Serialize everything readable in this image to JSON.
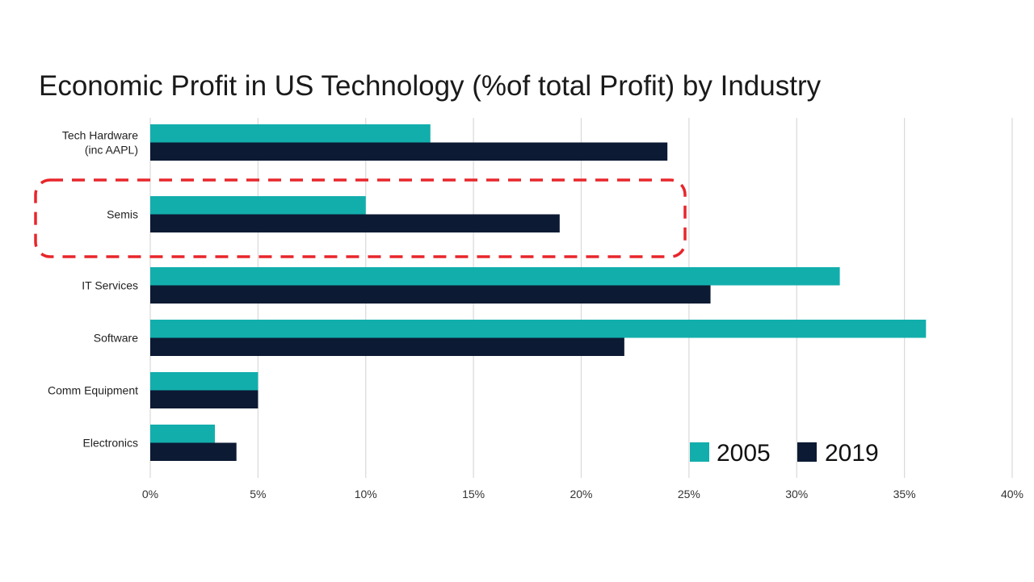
{
  "chart_data": {
    "type": "bar",
    "orientation": "horizontal",
    "title": "Economic Profit in US Technology (%of total Profit) by Industry",
    "xlabel": "",
    "ylabel": "",
    "categories": [
      [
        "Tech Hardware",
        "(inc AAPL)"
      ],
      [
        "Semis"
      ],
      [
        "IT Services"
      ],
      [
        "Software"
      ],
      [
        "Comm Equipment"
      ],
      [
        "Electronics"
      ]
    ],
    "series": [
      {
        "name": "2005",
        "color": "#12aeac",
        "values": [
          13,
          10,
          32,
          36,
          5,
          3
        ]
      },
      {
        "name": "2019",
        "color": "#0c1a33",
        "values": [
          24,
          19,
          26,
          22,
          5,
          4
        ]
      }
    ],
    "xlim": [
      0,
      40
    ],
    "xticks": [
      0,
      5,
      10,
      15,
      20,
      25,
      30,
      35,
      40
    ],
    "tick_suffix": "%",
    "grid": true,
    "legend": "bottom-right",
    "highlight": {
      "category": "Semis",
      "style": "dashed-rounded-box",
      "color": "#e8262b"
    }
  }
}
